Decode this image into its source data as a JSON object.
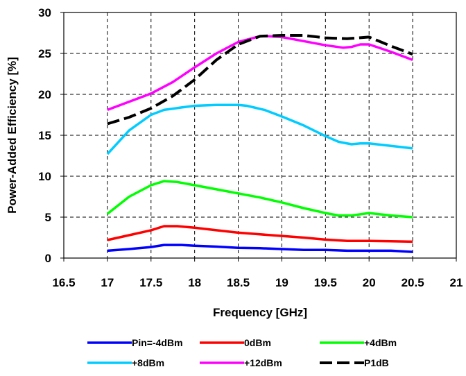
{
  "chart_data": {
    "type": "line",
    "title": "",
    "xlabel": "Frequency  [GHz]",
    "ylabel": "Power-Added Efficiency  [%]",
    "xlim": [
      16.5,
      21
    ],
    "ylim": [
      0,
      30
    ],
    "xticks": [
      "16.5",
      "17",
      "17.5",
      "18",
      "18.5",
      "19",
      "19.5",
      "20",
      "20.5",
      "21"
    ],
    "yticks": [
      "0",
      "5",
      "10",
      "15",
      "20",
      "25",
      "30"
    ],
    "grid": true,
    "legend_position": "bottom",
    "series": [
      {
        "name": "Pin=-4dBm",
        "color": "#0000ff",
        "dash": "solid",
        "x": [
          17,
          17.25,
          17.5,
          17.65,
          17.85,
          18,
          18.25,
          18.5,
          18.75,
          19,
          19.25,
          19.5,
          19.75,
          20,
          20.25,
          20.5
        ],
        "y": [
          0.9,
          1.1,
          1.35,
          1.6,
          1.6,
          1.5,
          1.4,
          1.25,
          1.2,
          1.1,
          1.0,
          1.0,
          0.9,
          0.9,
          0.9,
          0.75
        ]
      },
      {
        "name": "0dBm",
        "color": "#ff0000",
        "dash": "solid",
        "x": [
          17,
          17.25,
          17.5,
          17.65,
          17.8,
          18,
          18.25,
          18.5,
          18.75,
          19,
          19.25,
          19.5,
          19.75,
          20,
          20.25,
          20.5
        ],
        "y": [
          2.2,
          2.8,
          3.4,
          3.9,
          3.9,
          3.7,
          3.4,
          3.1,
          2.9,
          2.7,
          2.5,
          2.25,
          2.1,
          2.1,
          2.05,
          2.0
        ]
      },
      {
        "name": "+4dBm",
        "color": "#00ff00",
        "dash": "solid",
        "x": [
          17,
          17.25,
          17.5,
          17.65,
          17.8,
          18,
          18.25,
          18.5,
          18.75,
          19,
          19.25,
          19.5,
          19.65,
          19.8,
          20,
          20.25,
          20.5
        ],
        "y": [
          5.4,
          7.5,
          8.9,
          9.4,
          9.3,
          8.9,
          8.4,
          7.9,
          7.4,
          6.8,
          6.1,
          5.5,
          5.2,
          5.2,
          5.5,
          5.2,
          5.0
        ]
      },
      {
        "name": "+8dBm",
        "color": "#00ccff",
        "dash": "solid",
        "x": [
          17,
          17.25,
          17.5,
          17.65,
          17.85,
          18,
          18.25,
          18.5,
          18.6,
          18.8,
          19,
          19.25,
          19.5,
          19.65,
          19.8,
          19.9,
          20,
          20.25,
          20.5
        ],
        "y": [
          12.7,
          15.6,
          17.5,
          18.1,
          18.4,
          18.6,
          18.7,
          18.7,
          18.6,
          18.1,
          17.3,
          16.2,
          14.9,
          14.2,
          13.9,
          14.0,
          14.0,
          13.7,
          13.4
        ]
      },
      {
        "name": "+12dBm",
        "color": "#ff00ff",
        "dash": "solid",
        "x": [
          17,
          17.25,
          17.5,
          17.75,
          18,
          18.25,
          18.5,
          18.75,
          18.85,
          19,
          19.25,
          19.5,
          19.7,
          19.8,
          19.9,
          20,
          20.25,
          20.5
        ],
        "y": [
          18.1,
          19.1,
          20.1,
          21.5,
          23.3,
          25.0,
          26.4,
          27.1,
          27.1,
          27.0,
          26.5,
          26.0,
          25.7,
          25.8,
          26.1,
          26.1,
          25.2,
          24.2
        ]
      },
      {
        "name": "P1dB",
        "color": "#000000",
        "dash": "long-dash",
        "x": [
          17,
          17.25,
          17.5,
          17.75,
          18,
          18.25,
          18.5,
          18.75,
          19,
          19.25,
          19.5,
          19.75,
          20,
          20.25,
          20.5
        ],
        "y": [
          16.4,
          17.2,
          18.3,
          19.8,
          21.8,
          24.2,
          26.1,
          27.1,
          27.2,
          27.2,
          26.9,
          26.8,
          27.0,
          25.9,
          24.9
        ]
      }
    ]
  }
}
